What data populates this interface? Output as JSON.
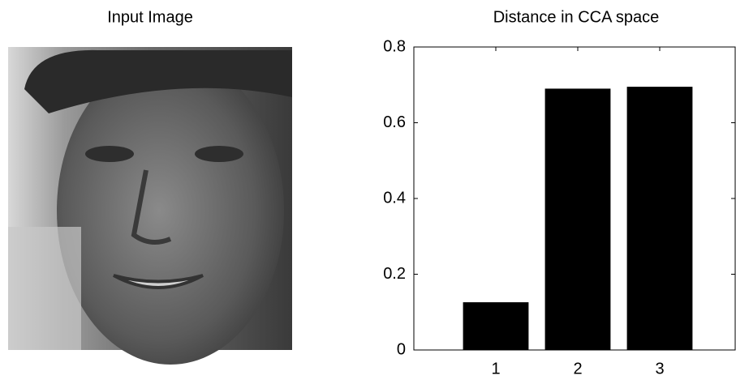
{
  "image_panel": {
    "title": "Input Image"
  },
  "chart_data": {
    "type": "bar",
    "title": "Distance in CCA space",
    "x": [
      1,
      2,
      3
    ],
    "values": [
      0.126,
      0.69,
      0.695
    ],
    "color": "#000000",
    "xlim": [
      0,
      4
    ],
    "xticks": [
      1,
      2,
      3
    ],
    "ylim": [
      0,
      0.8
    ],
    "yticks": [
      0,
      0.2,
      0.4,
      0.6,
      0.8
    ]
  }
}
